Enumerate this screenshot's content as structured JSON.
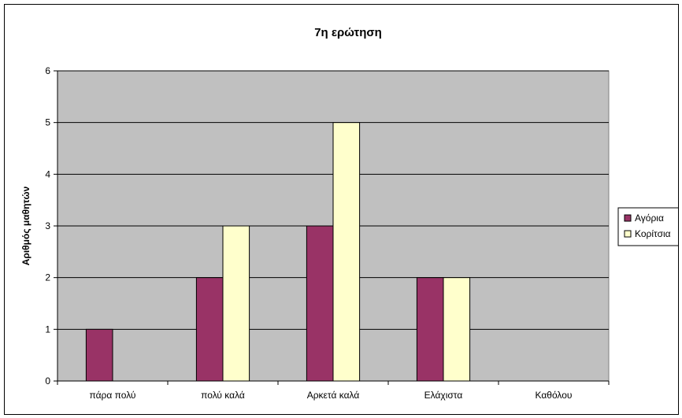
{
  "chart_data": {
    "type": "bar",
    "title": "7η ερώτηση",
    "xlabel": "",
    "ylabel": "Αριθμός μαθητών",
    "categories": [
      "πάρα πολύ",
      "πολύ καλά",
      "Αρκετά καλά",
      "Ελάχιστα",
      "Καθόλου"
    ],
    "series": [
      {
        "name": "Αγόρια",
        "values": [
          1,
          2,
          3,
          2,
          0
        ],
        "color": "#993366"
      },
      {
        "name": "Κορίτσια",
        "values": [
          0,
          3,
          5,
          2,
          0
        ],
        "color": "#ffffcc"
      }
    ],
    "ylim": [
      0,
      6
    ],
    "yticks": [
      0,
      1,
      2,
      3,
      4,
      5,
      6
    ],
    "grid": true,
    "plot_background": "#c0c0c0",
    "legend": "right"
  }
}
